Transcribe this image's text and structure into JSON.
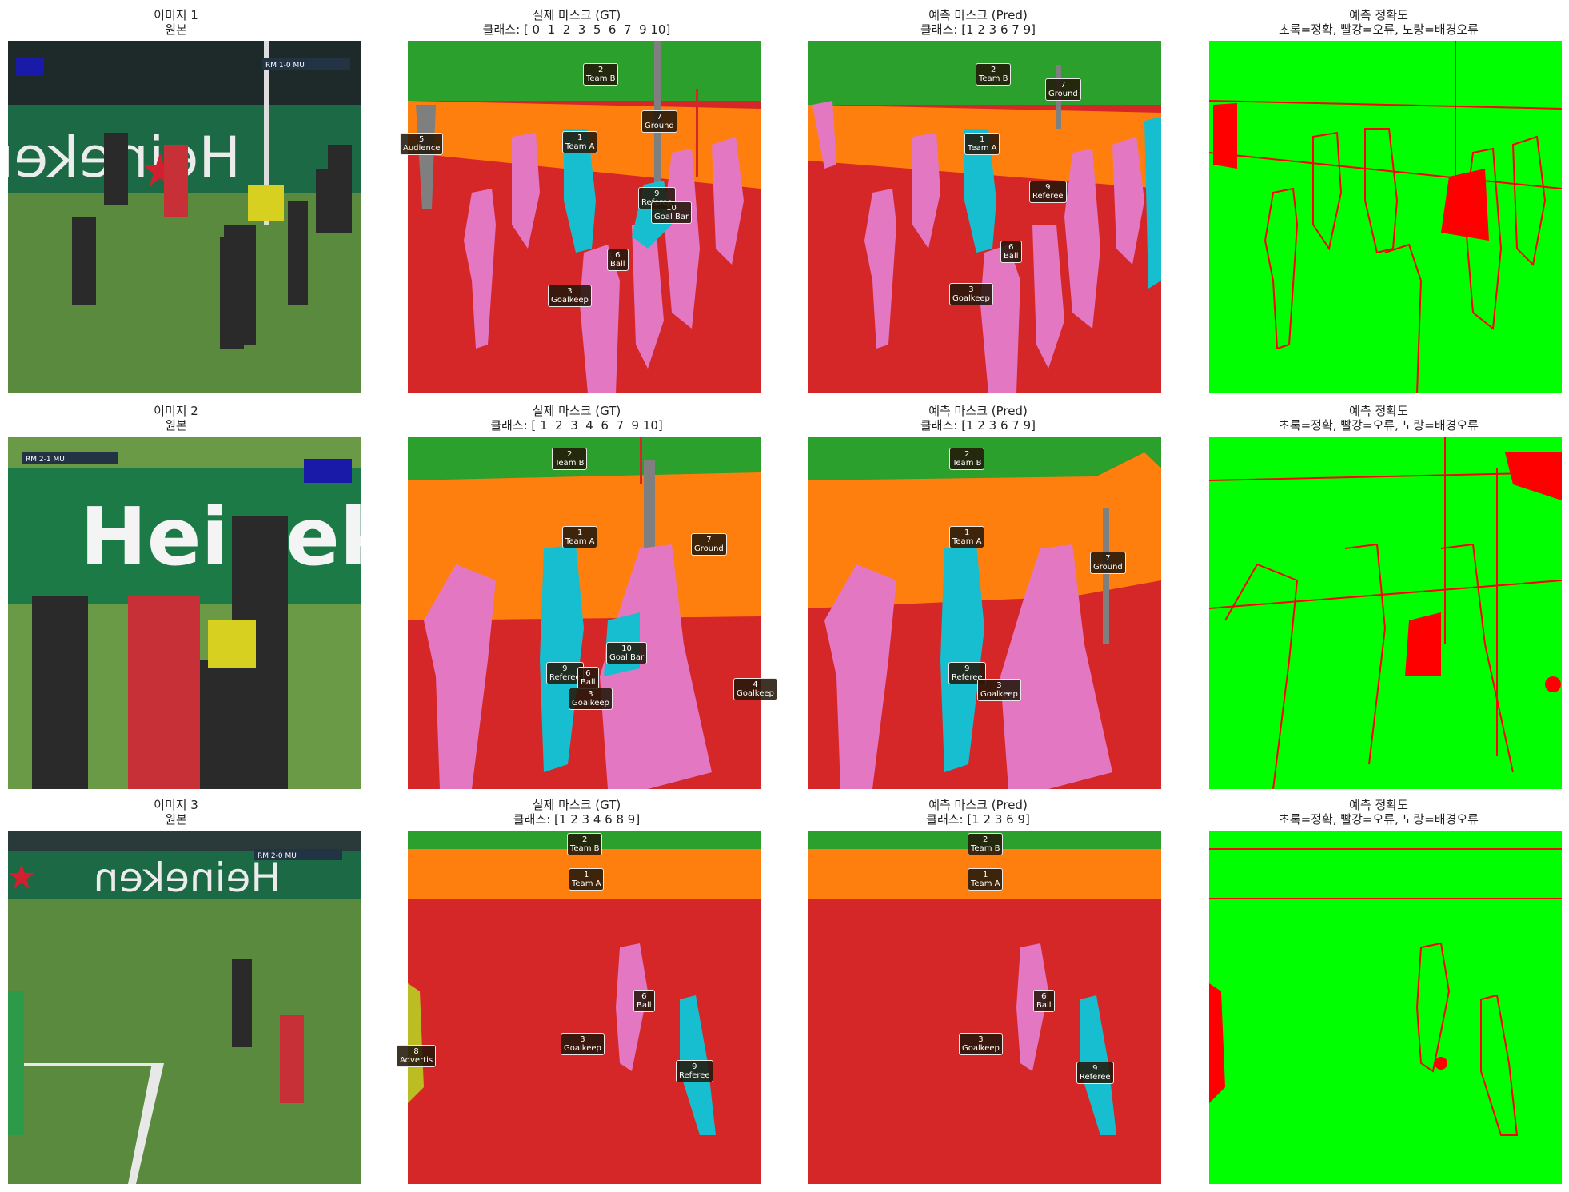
{
  "rows": [
    {
      "original": {
        "title": "이미지 1",
        "subtitle": "원본"
      },
      "gt": {
        "title": "실제 마스크 (GT)",
        "classes": "클래스: [ 0  1  2  3  5  6  7  9 10]"
      },
      "pred": {
        "title": "예측 마스크 (Pred)",
        "classes": "클래스: [1 2 3 6 7 9]"
      },
      "acc": {
        "title": "예측 정확도",
        "legend": "초록=정확, 빨강=오류, 노랑=배경오류"
      },
      "gt_labels": [
        {
          "id": "2",
          "name": "Team B"
        },
        {
          "id": "7",
          "name": "Ground"
        },
        {
          "id": "5",
          "name": "Audience"
        },
        {
          "id": "1",
          "name": "Team A"
        },
        {
          "id": "9",
          "name": "Referee"
        },
        {
          "id": "10",
          "name": "Goal Bar"
        },
        {
          "id": "6",
          "name": "Ball"
        },
        {
          "id": "3",
          "name": "Goalkeep"
        }
      ],
      "pred_labels": [
        {
          "id": "2",
          "name": "Team B"
        },
        {
          "id": "7",
          "name": "Ground"
        },
        {
          "id": "1",
          "name": "Team A"
        },
        {
          "id": "9",
          "name": "Referee"
        },
        {
          "id": "6",
          "name": "Ball"
        },
        {
          "id": "3",
          "name": "Goalkeep"
        }
      ]
    },
    {
      "original": {
        "title": "이미지 2",
        "subtitle": "원본"
      },
      "gt": {
        "title": "실제 마스크 (GT)",
        "classes": "클래스: [ 1  2  3  4  6  7  9 10]"
      },
      "pred": {
        "title": "예측 마스크 (Pred)",
        "classes": "클래스: [1 2 3 6 7 9]"
      },
      "acc": {
        "title": "예측 정확도",
        "legend": "초록=정확, 빨강=오류, 노랑=배경오류"
      },
      "gt_labels": [
        {
          "id": "2",
          "name": "Team B"
        },
        {
          "id": "1",
          "name": "Team A"
        },
        {
          "id": "7",
          "name": "Ground"
        },
        {
          "id": "10",
          "name": "Goal Bar"
        },
        {
          "id": "9",
          "name": "Referee"
        },
        {
          "id": "6",
          "name": "Ball"
        },
        {
          "id": "3",
          "name": "Goalkeep"
        },
        {
          "id": "4",
          "name": "Goalkeep"
        }
      ],
      "pred_labels": [
        {
          "id": "2",
          "name": "Team B"
        },
        {
          "id": "1",
          "name": "Team A"
        },
        {
          "id": "7",
          "name": "Ground"
        },
        {
          "id": "9",
          "name": "Referee"
        },
        {
          "id": "3",
          "name": "Goalkeep"
        }
      ]
    },
    {
      "original": {
        "title": "이미지 3",
        "subtitle": "원본"
      },
      "gt": {
        "title": "실제 마스크 (GT)",
        "classes": "클래스: [1 2 3 4 6 8 9]"
      },
      "pred": {
        "title": "예측 마스크 (Pred)",
        "classes": "클래스: [1 2 3 6 9]"
      },
      "acc": {
        "title": "예측 정확도",
        "legend": "초록=정확, 빨강=오류, 노랑=배경오류"
      },
      "gt_labels": [
        {
          "id": "2",
          "name": "Team B"
        },
        {
          "id": "1",
          "name": "Team A"
        },
        {
          "id": "6",
          "name": "Ball"
        },
        {
          "id": "3",
          "name": "Goalkeep"
        },
        {
          "id": "8",
          "name": "Advertis"
        },
        {
          "id": "9",
          "name": "Referee"
        }
      ],
      "pred_labels": [
        {
          "id": "2",
          "name": "Team B"
        },
        {
          "id": "1",
          "name": "Team A"
        },
        {
          "id": "6",
          "name": "Ball"
        },
        {
          "id": "3",
          "name": "Goalkeep"
        },
        {
          "id": "9",
          "name": "Referee"
        }
      ]
    }
  ],
  "scoreboard": [
    {
      "text": "RM  1-0  MU"
    },
    {
      "text": "RM  2-1  MU"
    },
    {
      "text": "RM  2-0  MU"
    }
  ],
  "ad_text": [
    "Heineken",
    "Heineken",
    "Heineken"
  ],
  "colors": {
    "green": "#2ca02c",
    "orange": "#ff7f0e",
    "red": "#d62728",
    "pink": "#e377c2",
    "cyan": "#17becf",
    "gray": "#7f7f7f",
    "correct": "#00ff00",
    "wrong": "#ff0000"
  }
}
